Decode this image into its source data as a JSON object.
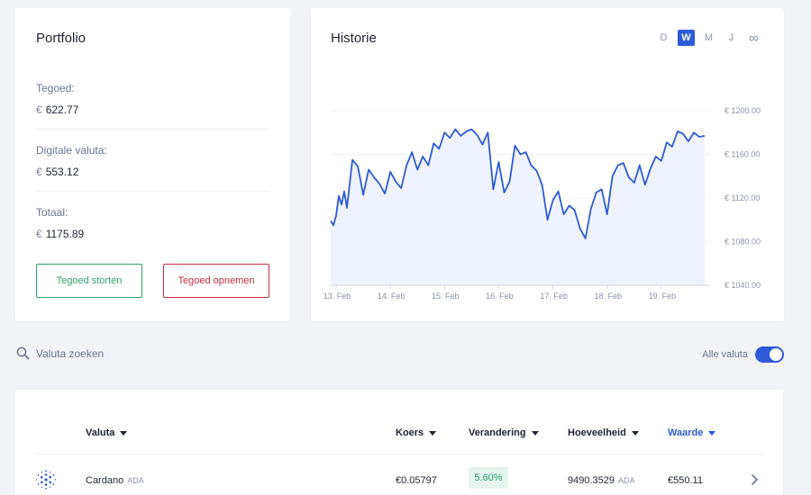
{
  "portfolio": {
    "title": "Portfolio",
    "items": [
      {
        "label": "Tegoed:",
        "currency": "€",
        "value": "622.77"
      },
      {
        "label": "Digitale valuta:",
        "currency": "€",
        "value": "553.12"
      },
      {
        "label": "Totaal:",
        "currency": "€",
        "value": "1175.89"
      }
    ],
    "deposit_label": "Tegoed storten",
    "withdraw_label": "Tegoed opnemen"
  },
  "history": {
    "title": "Historie",
    "ranges": [
      "D",
      "W",
      "M",
      "J",
      "∞"
    ],
    "active_range": "W"
  },
  "chart_data": {
    "type": "area",
    "title": "Historie",
    "xlabel": "",
    "ylabel": "",
    "x_ticks": [
      "13. Feb",
      "14. Feb",
      "15. Feb",
      "16. Feb",
      "17. Feb",
      "18. Feb",
      "19. Feb"
    ],
    "y_ticks": [
      "€ 1200.00",
      "€ 1160.00",
      "€ 1120.00",
      "€ 1080.00",
      "€ 1040.00"
    ],
    "ylim": [
      1040,
      1200
    ],
    "grid": true,
    "line_color": "#2d5bd7",
    "fill_color": "#eef3fd",
    "series": [
      {
        "x": [
          12.9,
          12.95,
          13.0,
          13.05,
          13.1,
          13.15,
          13.2,
          13.3,
          13.4,
          13.5,
          13.6,
          13.7,
          13.8,
          13.9,
          14.0,
          14.1,
          14.2,
          14.3,
          14.4,
          14.5,
          14.6,
          14.7,
          14.8,
          14.9,
          15.0,
          15.1,
          15.2,
          15.3,
          15.4,
          15.5,
          15.6,
          15.7,
          15.8,
          15.9,
          16.0,
          16.1,
          16.2,
          16.3,
          16.4,
          16.5,
          16.6,
          16.7,
          16.8,
          16.9,
          17.0,
          17.1,
          17.2,
          17.3,
          17.4,
          17.5,
          17.6,
          17.7,
          17.8,
          17.9,
          18.0,
          18.1,
          18.2,
          18.3,
          18.4,
          18.5,
          18.6,
          18.7,
          18.8,
          18.9,
          19.0,
          19.1,
          19.2,
          19.3,
          19.4,
          19.5,
          19.6,
          19.7,
          19.8
        ],
        "y": [
          1099,
          1095,
          1104,
          1122,
          1114,
          1126,
          1111,
          1155,
          1149,
          1123,
          1146,
          1139,
          1133,
          1124,
          1144,
          1135,
          1129,
          1150,
          1162,
          1146,
          1158,
          1150,
          1170,
          1165,
          1180,
          1175,
          1183,
          1177,
          1181,
          1183,
          1178,
          1169,
          1180,
          1128,
          1153,
          1125,
          1135,
          1168,
          1160,
          1162,
          1150,
          1145,
          1132,
          1100,
          1118,
          1126,
          1105,
          1113,
          1109,
          1092,
          1083,
          1110,
          1125,
          1128,
          1105,
          1140,
          1150,
          1152,
          1139,
          1134,
          1150,
          1132,
          1147,
          1158,
          1154,
          1171,
          1167,
          1181,
          1179,
          1172,
          1180,
          1176,
          1177
        ]
      }
    ]
  },
  "search": {
    "placeholder": "Valuta zoeken"
  },
  "filter": {
    "label": "Alle valuta",
    "enabled": true
  },
  "table": {
    "columns": [
      {
        "label": "Valuta"
      },
      {
        "label": "Koers"
      },
      {
        "label": "Verandering"
      },
      {
        "label": "Hoeveelheid"
      },
      {
        "label": "Waarde"
      }
    ],
    "rows": [
      {
        "name": "Cardano",
        "symbol": "ADA",
        "price": "€0.05797",
        "change": "5.60%",
        "amount": "9490.3529",
        "amount_unit": "ADA",
        "value": "€550.11"
      }
    ]
  }
}
